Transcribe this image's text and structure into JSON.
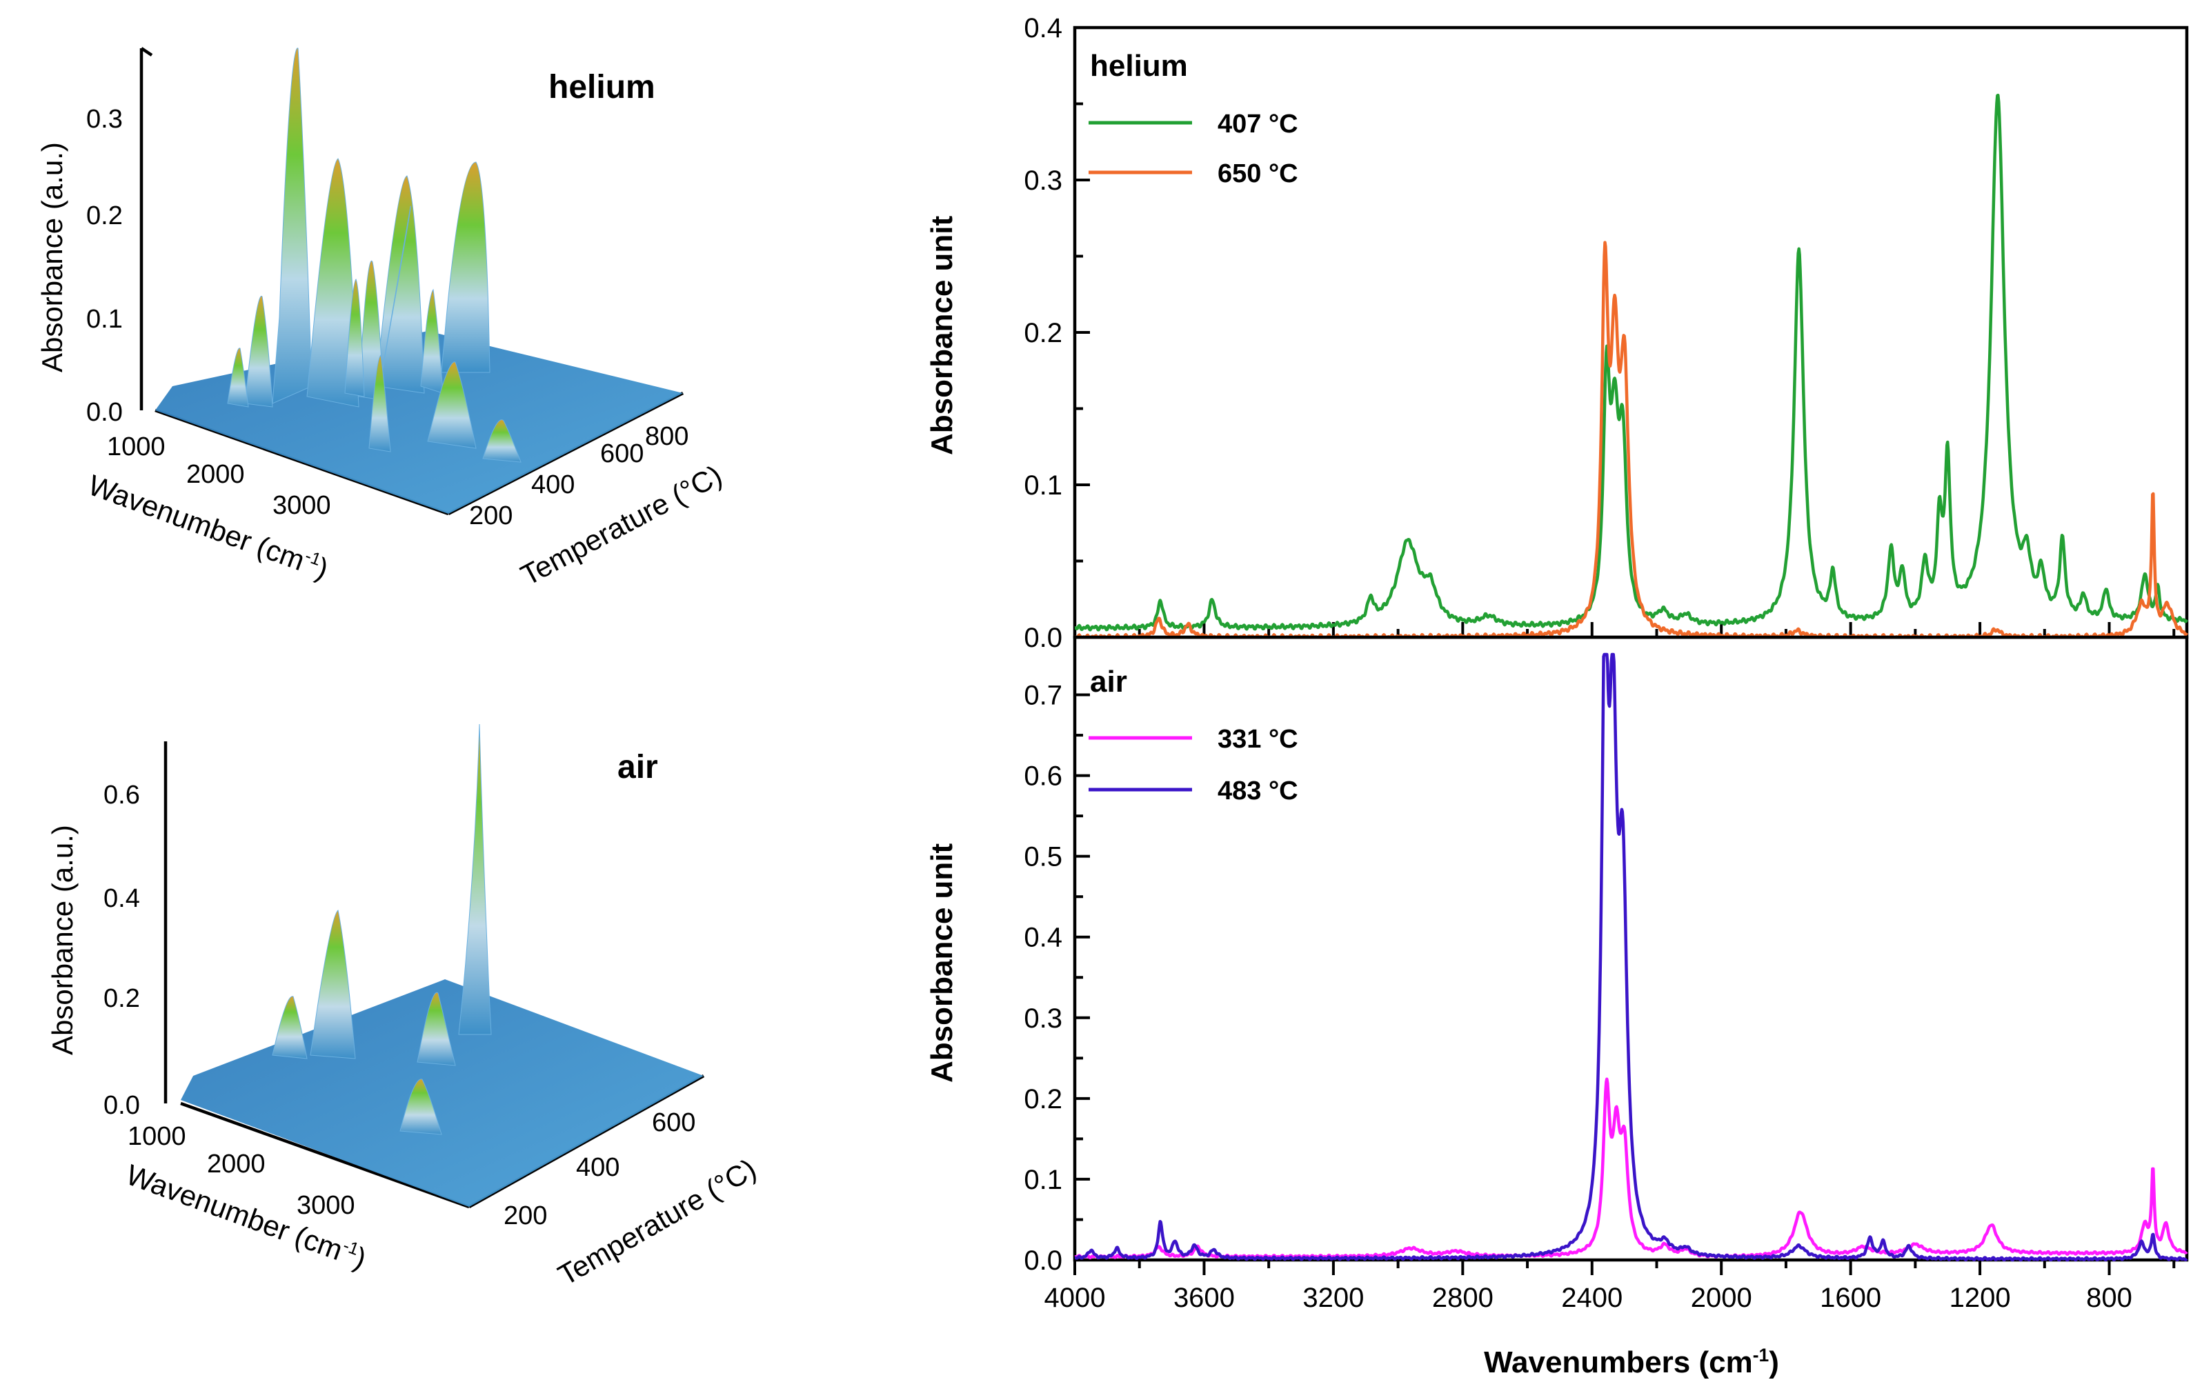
{
  "colors": {
    "green": "#22a033",
    "orange": "#f06a2a",
    "magenta": "#ff1aff",
    "blue": "#3a14c8",
    "surface": "#3c8fc8",
    "surface_peak_green": "#6ec83a",
    "surface_peak_orange": "#d8a030"
  },
  "chart_data": [
    {
      "id": "surface-helium",
      "type": "surface3d",
      "title": "helium",
      "xlabel": "Wavenumber (cm-1)",
      "ylabel": "Temperature (°C)",
      "zlabel": "Absorbance (a.u.)",
      "x_ticks": [
        "1000",
        "2000",
        "3000"
      ],
      "y_ticks": [
        "200",
        "400",
        "600",
        "800"
      ],
      "z_ticks": [
        "0.0",
        "0.1",
        "0.2",
        "0.3"
      ],
      "zlim": [
        0,
        0.36
      ]
    },
    {
      "id": "surface-air",
      "type": "surface3d",
      "title": "air",
      "xlabel": "Wavenumber (cm-1)",
      "ylabel": "Temperature (°C)",
      "zlabel": "Absorbance (a.u.)",
      "x_ticks": [
        "1000",
        "2000",
        "3000"
      ],
      "y_ticks": [
        "200",
        "400",
        "600"
      ],
      "z_ticks": [
        "0.0",
        "0.2",
        "0.4",
        "0.6"
      ],
      "zlim": [
        0,
        0.7
      ]
    },
    {
      "id": "spectra-helium",
      "type": "line",
      "title": "helium",
      "xlabel": "",
      "ylabel": "Absorbance unit",
      "xlim": [
        4000,
        560
      ],
      "ylim": [
        0,
        0.4
      ],
      "y_ticks": [
        0.0,
        0.1,
        0.2,
        0.3,
        0.4
      ],
      "y_tick_labels": [
        "0.0",
        "0.1",
        "0.2",
        "0.3",
        "0.4"
      ],
      "series": [
        {
          "name": "407 °C",
          "color": "#22a033",
          "peaks": [
            [
              3735,
              0.018,
              10
            ],
            [
              3575,
              0.018,
              12
            ],
            [
              3085,
              0.015,
              12
            ],
            [
              2970,
              0.055,
              40
            ],
            [
              2900,
              0.02,
              25
            ],
            [
              2720,
              0.006,
              30
            ],
            [
              2355,
              0.15,
              12
            ],
            [
              2330,
              0.11,
              14
            ],
            [
              2305,
              0.11,
              14
            ],
            [
              2180,
              0.008,
              20
            ],
            [
              2110,
              0.006,
              20
            ],
            [
              1760,
              0.245,
              18
            ],
            [
              1655,
              0.03,
              10
            ],
            [
              1475,
              0.045,
              12
            ],
            [
              1440,
              0.03,
              10
            ],
            [
              1370,
              0.035,
              12
            ],
            [
              1325,
              0.06,
              10
            ],
            [
              1300,
              0.1,
              10
            ],
            [
              1145,
              0.345,
              25
            ],
            [
              1055,
              0.03,
              14
            ],
            [
              1010,
              0.025,
              12
            ],
            [
              945,
              0.05,
              10
            ],
            [
              880,
              0.015,
              10
            ],
            [
              810,
              0.02,
              10
            ],
            [
              690,
              0.03,
              12
            ],
            [
              650,
              0.02,
              8
            ]
          ],
          "baseline": [
            [
              4000,
              0.006
            ],
            [
              2400,
              0.006
            ],
            [
              2365,
              0.006
            ],
            [
              600,
              0.01
            ]
          ]
        },
        {
          "name": "650 °C",
          "color": "#f06a2a",
          "peaks": [
            [
              3740,
              0.012,
              12
            ],
            [
              3650,
              0.008,
              14
            ],
            [
              2360,
              0.22,
              12
            ],
            [
              2330,
              0.16,
              14
            ],
            [
              2300,
              0.16,
              16
            ],
            [
              1765,
              0.004,
              20
            ],
            [
              1150,
              0.005,
              16
            ],
            [
              700,
              0.02,
              20
            ],
            [
              665,
              0.09,
              5
            ],
            [
              620,
              0.02,
              20
            ]
          ],
          "baseline": [
            [
              4000,
              0.0
            ],
            [
              600,
              0.0
            ]
          ]
        }
      ]
    },
    {
      "id": "spectra-air",
      "type": "line",
      "title": "air",
      "xlabel": "Wavenumbers (cm-1)",
      "ylabel": "Absorbance unit",
      "xlim": [
        4000,
        560
      ],
      "ylim": [
        0,
        0.75
      ],
      "y_ticks": [
        0.0,
        0.1,
        0.2,
        0.3,
        0.4,
        0.5,
        0.6,
        0.7
      ],
      "y_tick_labels": [
        "0.0",
        "0.1",
        "0.2",
        "0.3",
        "0.4",
        "0.5",
        "0.6",
        "0.7"
      ],
      "x_ticks": [
        4000,
        3600,
        3200,
        2800,
        2400,
        2000,
        1600,
        1200,
        800
      ],
      "x_tick_labels": [
        "4000",
        "3600",
        "3200",
        "2800",
        "2400",
        "2000",
        "1600",
        "1200",
        "800"
      ],
      "series": [
        {
          "name": "331 °C",
          "color": "#ff1aff",
          "peaks": [
            [
              3740,
              0.012,
              14
            ],
            [
              3620,
              0.012,
              14
            ],
            [
              2960,
              0.01,
              40
            ],
            [
              2820,
              0.006,
              40
            ],
            [
              2355,
              0.19,
              12
            ],
            [
              2325,
              0.13,
              14
            ],
            [
              2300,
              0.12,
              14
            ],
            [
              2175,
              0.012,
              18
            ],
            [
              2110,
              0.008,
              18
            ],
            [
              1755,
              0.055,
              25
            ],
            [
              1560,
              0.01,
              30
            ],
            [
              1400,
              0.012,
              30
            ],
            [
              1165,
              0.035,
              22
            ],
            [
              690,
              0.035,
              12
            ],
            [
              665,
              0.1,
              5
            ],
            [
              625,
              0.035,
              12
            ]
          ],
          "baseline": [
            [
              4000,
              0.004
            ],
            [
              2400,
              0.004
            ],
            [
              2000,
              0.003
            ],
            [
              1600,
              0.005
            ],
            [
              1200,
              0.008
            ],
            [
              600,
              0.008
            ]
          ]
        },
        {
          "name": "483 °C",
          "color": "#3a14c8",
          "peaks": [
            [
              3950,
              0.01,
              10
            ],
            [
              3870,
              0.012,
              10
            ],
            [
              3735,
              0.045,
              8
            ],
            [
              3690,
              0.02,
              10
            ],
            [
              3630,
              0.015,
              12
            ],
            [
              3570,
              0.01,
              12
            ],
            [
              2360,
              0.68,
              12
            ],
            [
              2335,
              0.55,
              14
            ],
            [
              2305,
              0.42,
              16
            ],
            [
              2175,
              0.012,
              18
            ],
            [
              2110,
              0.008,
              18
            ],
            [
              1760,
              0.015,
              25
            ],
            [
              1540,
              0.025,
              10
            ],
            [
              1500,
              0.02,
              10
            ],
            [
              1420,
              0.015,
              12
            ],
            [
              700,
              0.02,
              12
            ],
            [
              665,
              0.03,
              6
            ]
          ],
          "baseline": [
            [
              4000,
              0.002
            ],
            [
              600,
              0.001
            ]
          ]
        }
      ]
    }
  ]
}
